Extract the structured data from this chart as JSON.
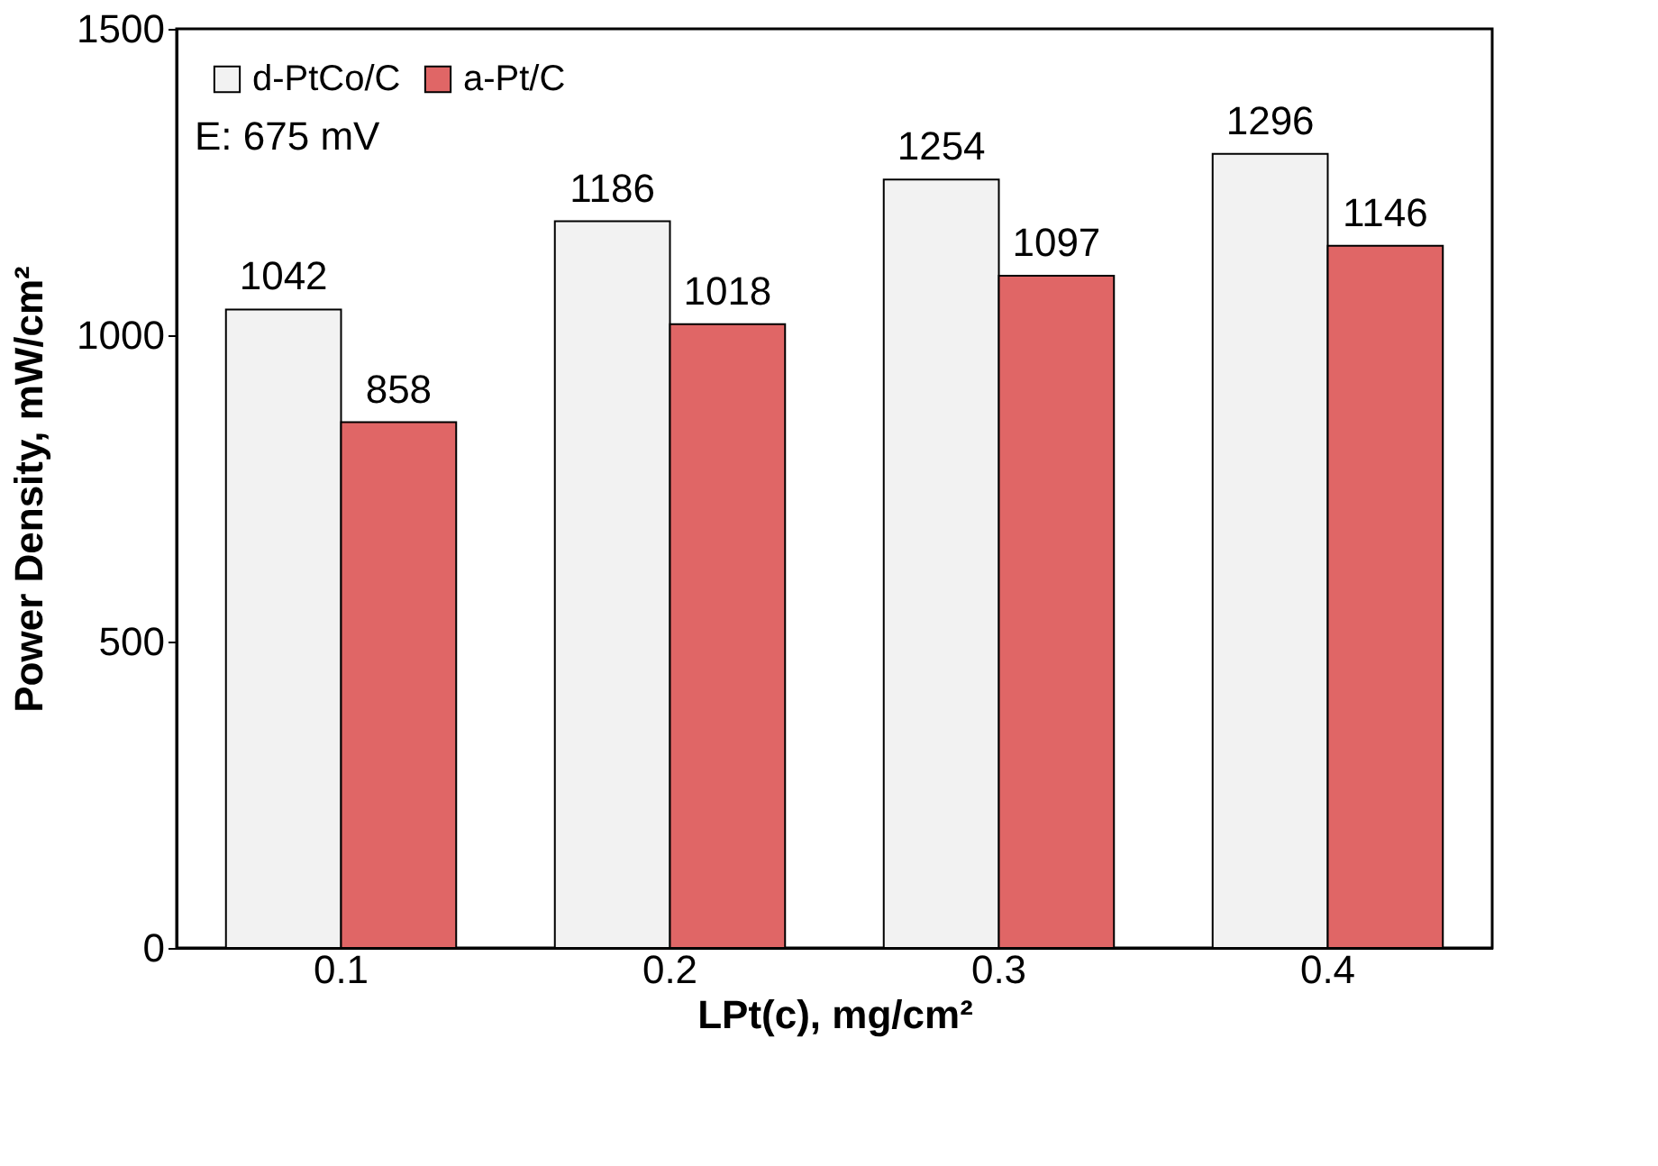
{
  "chart_data": {
    "type": "bar",
    "xlabel": "LPt(c), mg/cm²",
    "ylabel": "Power Density, mW/cm²",
    "categories": [
      "0.1",
      "0.2",
      "0.3",
      "0.4"
    ],
    "series": [
      {
        "name": "d-PtCo/C",
        "color": "#f2f2f2",
        "values": [
          1042,
          1186,
          1254,
          1296
        ]
      },
      {
        "name": "a-Pt/C",
        "color": "#e06666",
        "values": [
          858,
          1018,
          1097,
          1146
        ]
      }
    ],
    "ylim": [
      0,
      1500
    ],
    "yticks": [
      0,
      500,
      1000,
      1500
    ],
    "grid": false,
    "legend": "top left",
    "data_labels": true,
    "annotations": [
      "E: 675 mV"
    ]
  }
}
